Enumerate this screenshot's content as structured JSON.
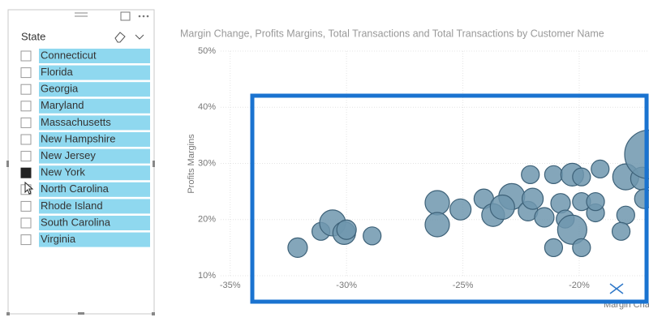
{
  "slicer": {
    "title": "State",
    "items": [
      "Connecticut",
      "Florida",
      "Georgia",
      "Maryland",
      "Massachusetts",
      "New Hampshire",
      "New Jersey",
      "New York",
      "North Carolina",
      "Rhode Island",
      "South Carolina",
      "Virginia"
    ],
    "selected": "New York"
  },
  "chart_data": {
    "type": "scatter",
    "title": "Margin Change, Profits Margins, Total Transactions and Total Transactions by Customer Name",
    "x_label": "Margin Change",
    "y_label": "Profits Margins",
    "color": "#6f96ae",
    "x": [
      -32.1,
      -31.1,
      -30.6,
      -30.1,
      -30.0,
      -28.9,
      -26.1,
      -26.1,
      -25.1,
      -24.1,
      -23.7,
      -22.9,
      -23.3,
      -22.2,
      -22.0,
      -22.1,
      -21.1,
      -21.5,
      -20.8,
      -20.6,
      -21.1,
      -20.3,
      -19.9,
      -20.3,
      -19.9,
      -19.9,
      -19.3,
      -19.3,
      -19.1,
      -18.0,
      -18.0,
      -18.2,
      -17.3,
      -17.0,
      -17.2
    ],
    "y": [
      15.0,
      17.9,
      19.4,
      17.6,
      18.2,
      17.1,
      23.0,
      19.1,
      21.8,
      23.7,
      20.8,
      24.1,
      22.2,
      21.5,
      23.7,
      28.0,
      28.0,
      20.4,
      22.9,
      20.1,
      15.0,
      18.2,
      15.0,
      28.0,
      27.6,
      23.2,
      21.2,
      23.2,
      29.0,
      27.6,
      20.8,
      17.9,
      27.3,
      31.6,
      23.7
    ],
    "size": [
      64,
      54,
      114,
      87,
      64,
      54,
      100,
      100,
      75,
      64,
      87,
      114,
      100,
      64,
      75,
      54,
      54,
      64,
      64,
      54,
      54,
      144,
      54,
      87,
      54,
      54,
      54,
      54,
      54,
      114,
      54,
      54,
      87,
      400,
      64
    ],
    "xlim": [
      -35.2,
      -17.0
    ],
    "ylim": [
      9.5,
      50.5
    ],
    "xticks": [
      {
        "value": -35,
        "label": "-35%"
      },
      {
        "value": -30,
        "label": "-30%"
      },
      {
        "value": -25,
        "label": "-25%"
      },
      {
        "value": -20,
        "label": "-20%"
      }
    ],
    "yticks": [
      {
        "value": 10,
        "label": "10%"
      },
      {
        "value": 20,
        "label": "20%"
      },
      {
        "value": 30,
        "label": "30%"
      },
      {
        "value": 40,
        "label": "40%"
      },
      {
        "value": 50,
        "label": "50%"
      }
    ],
    "grid": true
  }
}
